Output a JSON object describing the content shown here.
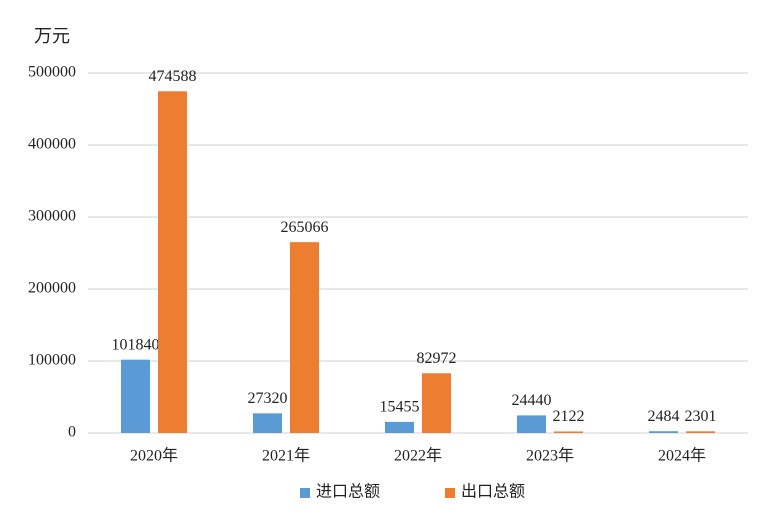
{
  "chart_data": {
    "type": "bar",
    "y_label": "万元",
    "categories": [
      "2020年",
      "2021年",
      "2022年",
      "2023年",
      "2024年"
    ],
    "series": [
      {
        "name": "进口总额",
        "color": "#5b9bd5",
        "values": [
          101840,
          27320,
          15455,
          24440,
          2484
        ]
      },
      {
        "name": "出口总额",
        "color": "#ed7d31",
        "values": [
          474588,
          265066,
          82972,
          2122,
          2301
        ]
      }
    ],
    "ylim": [
      0,
      500000
    ],
    "yticks": [
      0,
      100000,
      200000,
      300000,
      400000,
      500000
    ],
    "grid": true,
    "legend": "bottom"
  }
}
